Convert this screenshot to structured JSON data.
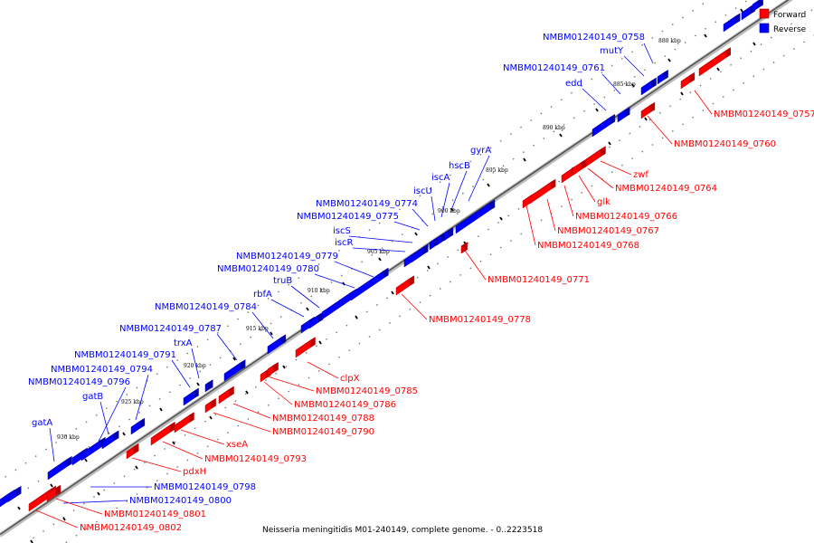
{
  "caption": "Neisseria meningitidis M01-240149, complete genome. - 0..2223518",
  "legend": [
    {
      "label": "Forward",
      "color": "#ff0000"
    },
    {
      "label": "Reverse",
      "color": "#0000ff"
    }
  ],
  "colors": {
    "forward": "#ff0000",
    "reverse": "#0000ff",
    "forward_dark": "#b80000",
    "reverse_dark": "#0000a8",
    "backbone": "#555555"
  },
  "kbp_ticks": [
    "880 kbp",
    "885 kbp",
    "890 kbp",
    "895 kbp",
    "900 kbp",
    "905 kbp",
    "910 kbp",
    "915 kbp",
    "920 kbp",
    "925 kbp",
    "930 kbp"
  ],
  "reverse_labels": [
    "NMBM01240149_0758",
    "mutY",
    "NMBM01240149_0761",
    "edd",
    "gyrA",
    "hscB",
    "iscA",
    "iscU",
    "NMBM01240149_0774",
    "NMBM01240149_0775",
    "iscS",
    "iscR",
    "NMBM01240149_0779",
    "NMBM01240149_0780",
    "truB",
    "rbfA",
    "NMBM01240149_0784",
    "NMBM01240149_0787",
    "trxA",
    "NMBM01240149_0791",
    "NMBM01240149_0794",
    "NMBM01240149_0796",
    "gatB",
    "gatA",
    "NMBM01240149_0798",
    "NMBM01240149_0800"
  ],
  "forward_labels": [
    "NMBM01240149_0757",
    "NMBM01240149_0760",
    "zwf",
    "NMBM01240149_0764",
    "glk",
    "NMBM01240149_0766",
    "NMBM01240149_0767",
    "NMBM01240149_0768",
    "NMBM01240149_0771",
    "NMBM01240149_0778",
    "clpX",
    "NMBM01240149_0785",
    "NMBM01240149_0786",
    "NMBM01240149_0788",
    "NMBM01240149_0790",
    "xseA",
    "NMBM01240149_0793",
    "pdxH",
    "NMBM01240149_0801",
    "NMBM01240149_0802"
  ]
}
